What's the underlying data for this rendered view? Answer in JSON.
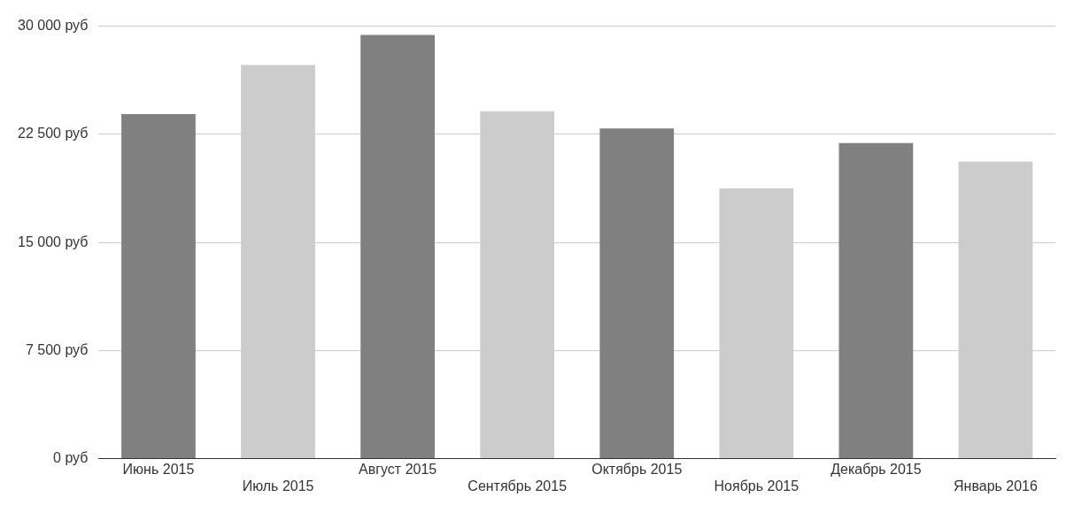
{
  "chart_data": {
    "type": "bar",
    "categories": [
      "Июнь 2015",
      "Июль 2015",
      "Август 2015",
      "Сентябрь 2015",
      "Октябрь 2015",
      "Ноябрь 2015",
      "Декабрь 2015",
      "Январь 2016"
    ],
    "values": [
      23900,
      27300,
      29400,
      24100,
      22900,
      18750,
      21900,
      20600
    ],
    "colors": [
      "#808080",
      "#cccccc",
      "#808080",
      "#cccccc",
      "#808080",
      "#cccccc",
      "#808080",
      "#cccccc"
    ],
    "ylim": [
      0,
      30000
    ],
    "yticks": [
      {
        "value": 0,
        "label": "0 руб"
      },
      {
        "value": 7500,
        "label": "7 500 руб"
      },
      {
        "value": 15000,
        "label": "15 000 руб"
      },
      {
        "value": 22500,
        "label": "22 500 руб"
      },
      {
        "value": 30000,
        "label": "30 000 руб"
      }
    ],
    "grid": "y"
  }
}
